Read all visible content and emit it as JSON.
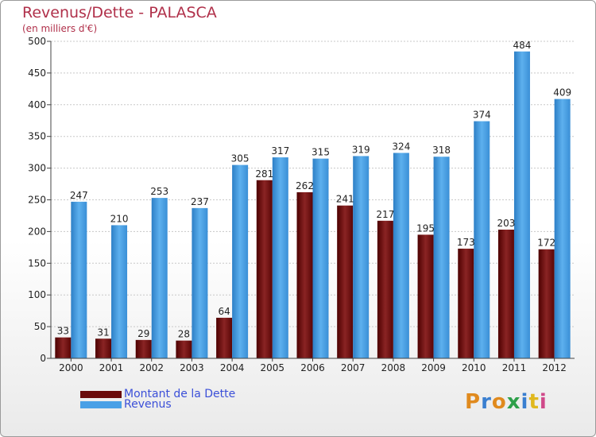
{
  "title": "Revenus/Dette - PALASCA",
  "subtitle": "(en milliers d'€)",
  "logo_text": "Proxiti",
  "colors": {
    "debt": "#7a1414",
    "revenue": "#4aa0e6",
    "title": "#b0304a",
    "legend_text": "#3b4fd8"
  },
  "legend": [
    {
      "label": "Montant de la Dette",
      "color": "#6a0a0a"
    },
    {
      "label": "Revenus",
      "color": "#4aa0e6"
    }
  ],
  "chart_data": {
    "type": "bar",
    "categories": [
      "2000",
      "2001",
      "2002",
      "2003",
      "2004",
      "2005",
      "2006",
      "2007",
      "2008",
      "2009",
      "2010",
      "2011",
      "2012"
    ],
    "series": [
      {
        "name": "Montant de la Dette",
        "values": [
          33,
          31,
          29,
          28,
          64,
          281,
          262,
          241,
          217,
          195,
          173,
          203,
          172
        ]
      },
      {
        "name": "Revenus",
        "values": [
          247,
          210,
          253,
          237,
          305,
          317,
          315,
          319,
          324,
          318,
          374,
          484,
          409
        ]
      }
    ],
    "ylim": [
      0,
      500
    ],
    "yticks": [
      0,
      50,
      100,
      150,
      200,
      250,
      300,
      350,
      400,
      450,
      500
    ],
    "grid": true
  }
}
